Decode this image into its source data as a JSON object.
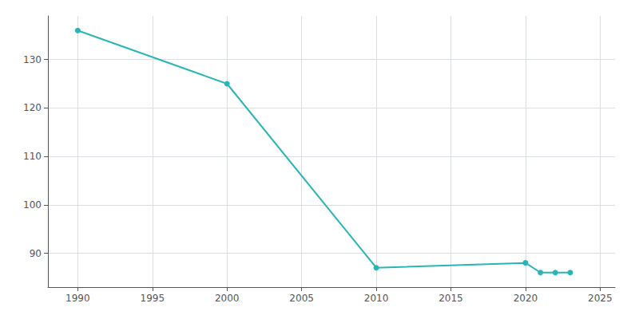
{
  "chart_data": {
    "type": "line",
    "x": [
      1990,
      2000,
      2010,
      2020,
      2021,
      2022,
      2023
    ],
    "values": [
      136,
      125,
      87,
      88,
      86,
      86,
      86
    ],
    "color": "#2ab5b5",
    "marker": "circle",
    "xlim": [
      1988,
      2026
    ],
    "ylim": [
      83,
      139
    ],
    "xticks": [
      1990,
      1995,
      2000,
      2005,
      2010,
      2015,
      2020,
      2025
    ],
    "yticks": [
      90,
      100,
      110,
      120,
      130
    ],
    "grid": true
  }
}
